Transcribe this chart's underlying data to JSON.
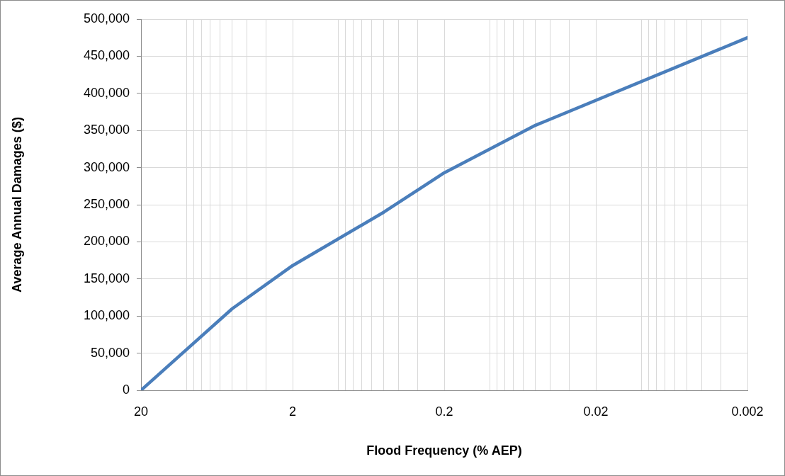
{
  "chart_data": {
    "type": "line",
    "xlabel": "Flood Frequency (% AEP)",
    "ylabel": "Average Annual Damages ($)",
    "log": "x",
    "grid": true,
    "legend": false,
    "marker": "none",
    "line_style": "solid",
    "xlim": [
      20,
      0.002
    ],
    "ylim": [
      0,
      500000
    ],
    "xticks": [
      {
        "value": 20,
        "label": "20"
      },
      {
        "value": 10,
        "label": null
      },
      {
        "value": 9,
        "label": null
      },
      {
        "value": 8,
        "label": null
      },
      {
        "value": 7,
        "label": null
      },
      {
        "value": 6,
        "label": null
      },
      {
        "value": 5,
        "label": null
      },
      {
        "value": 4,
        "label": null
      },
      {
        "value": 3,
        "label": null
      },
      {
        "value": 2,
        "label": "2"
      },
      {
        "value": 1,
        "label": null
      },
      {
        "value": 0.9,
        "label": null
      },
      {
        "value": 0.8,
        "label": null
      },
      {
        "value": 0.7,
        "label": null
      },
      {
        "value": 0.6,
        "label": null
      },
      {
        "value": 0.5,
        "label": null
      },
      {
        "value": 0.4,
        "label": null
      },
      {
        "value": 0.3,
        "label": null
      },
      {
        "value": 0.2,
        "label": "0.2"
      },
      {
        "value": 0.1,
        "label": null
      },
      {
        "value": 0.09,
        "label": null
      },
      {
        "value": 0.08,
        "label": null
      },
      {
        "value": 0.07,
        "label": null
      },
      {
        "value": 0.06,
        "label": null
      },
      {
        "value": 0.05,
        "label": null
      },
      {
        "value": 0.04,
        "label": null
      },
      {
        "value": 0.03,
        "label": null
      },
      {
        "value": 0.02,
        "label": "0.02"
      },
      {
        "value": 0.01,
        "label": null
      },
      {
        "value": 0.009,
        "label": null
      },
      {
        "value": 0.008,
        "label": null
      },
      {
        "value": 0.007,
        "label": null
      },
      {
        "value": 0.006,
        "label": null
      },
      {
        "value": 0.005,
        "label": null
      },
      {
        "value": 0.004,
        "label": null
      },
      {
        "value": 0.003,
        "label": null
      },
      {
        "value": 0.002,
        "label": "0.002"
      }
    ],
    "yticks": [
      {
        "value": 0,
        "label": "0"
      },
      {
        "value": 50000,
        "label": "50,000"
      },
      {
        "value": 100000,
        "label": "100,000"
      },
      {
        "value": 150000,
        "label": "150,000"
      },
      {
        "value": 200000,
        "label": "200,000"
      },
      {
        "value": 250000,
        "label": "250,000"
      },
      {
        "value": 300000,
        "label": "300,000"
      },
      {
        "value": 350000,
        "label": "350,000"
      },
      {
        "value": 400000,
        "label": "400,000"
      },
      {
        "value": 450000,
        "label": "450,000"
      },
      {
        "value": 500000,
        "label": "500,000"
      }
    ],
    "x": [
      20,
      5,
      2,
      0.5,
      0.2,
      0.05,
      0.002
    ],
    "series": [
      {
        "color": "#4a7ebb",
        "values": [
          0,
          110000,
          168000,
          240000,
          293000,
          357000,
          475000
        ]
      }
    ]
  }
}
